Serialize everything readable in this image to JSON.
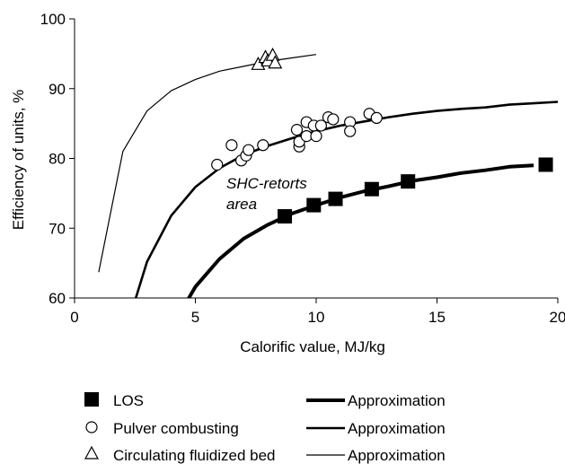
{
  "chart_data": {
    "type": "scatter",
    "xlabel": "Calorific value, MJ/kg",
    "ylabel": "Efficiency of units, %",
    "xlim": [
      0,
      20
    ],
    "ylim": [
      60,
      100
    ],
    "x_ticks": [
      "0",
      "5",
      "10",
      "15",
      "20"
    ],
    "y_ticks": [
      "60",
      "70",
      "80",
      "90",
      "100"
    ],
    "grid": false,
    "legend_position": "bottom",
    "annotation": [
      "SHC-retorts",
      "area"
    ],
    "series": [
      {
        "name": "LOS",
        "marker": "filled-square",
        "points": [
          {
            "x": 8.7,
            "y": 71.7
          },
          {
            "x": 9.9,
            "y": 73.3
          },
          {
            "x": 10.8,
            "y": 74.2
          },
          {
            "x": 12.3,
            "y": 75.6
          },
          {
            "x": 13.8,
            "y": 76.7
          },
          {
            "x": 19.5,
            "y": 79.1
          }
        ]
      },
      {
        "name": "Pulver combusting",
        "marker": "open-circle",
        "points": [
          {
            "x": 5.9,
            "y": 79.1
          },
          {
            "x": 6.5,
            "y": 81.9
          },
          {
            "x": 6.9,
            "y": 79.7
          },
          {
            "x": 7.1,
            "y": 80.4
          },
          {
            "x": 7.2,
            "y": 81.2
          },
          {
            "x": 7.8,
            "y": 81.9
          },
          {
            "x": 9.2,
            "y": 84.1
          },
          {
            "x": 9.3,
            "y": 81.7
          },
          {
            "x": 9.3,
            "y": 82.4
          },
          {
            "x": 9.6,
            "y": 83.2
          },
          {
            "x": 9.6,
            "y": 85.2
          },
          {
            "x": 9.9,
            "y": 84.7
          },
          {
            "x": 10.0,
            "y": 83.2
          },
          {
            "x": 10.2,
            "y": 84.7
          },
          {
            "x": 10.5,
            "y": 85.9
          },
          {
            "x": 10.7,
            "y": 85.6
          },
          {
            "x": 11.4,
            "y": 85.2
          },
          {
            "x": 11.4,
            "y": 83.9
          },
          {
            "x": 12.2,
            "y": 86.4
          },
          {
            "x": 12.5,
            "y": 85.8
          }
        ]
      },
      {
        "name": "Circulating fluidized bed",
        "marker": "open-triangle",
        "points": [
          {
            "x": 7.6,
            "y": 93.4
          },
          {
            "x": 7.9,
            "y": 94.4
          },
          {
            "x": 8.0,
            "y": 93.9
          },
          {
            "x": 8.2,
            "y": 94.7
          },
          {
            "x": 8.3,
            "y": 93.6
          }
        ]
      },
      {
        "name": "Approximation",
        "legend_for": "LOS",
        "line_weight": "thick",
        "points": [
          {
            "x": 4.6,
            "y": 59.2
          },
          {
            "x": 5.0,
            "y": 61.6
          },
          {
            "x": 6.0,
            "y": 65.6
          },
          {
            "x": 7.0,
            "y": 68.5
          },
          {
            "x": 8.0,
            "y": 70.5
          },
          {
            "x": 9.0,
            "y": 72.1
          },
          {
            "x": 10.0,
            "y": 73.3
          },
          {
            "x": 11.0,
            "y": 74.4
          },
          {
            "x": 12.0,
            "y": 75.3
          },
          {
            "x": 13.0,
            "y": 76.0
          },
          {
            "x": 14.0,
            "y": 76.8
          },
          {
            "x": 15.0,
            "y": 77.3
          },
          {
            "x": 16.0,
            "y": 77.9
          },
          {
            "x": 17.0,
            "y": 78.3
          },
          {
            "x": 18.0,
            "y": 78.8
          },
          {
            "x": 19.0,
            "y": 79.0
          }
        ]
      },
      {
        "name": "Approximation",
        "legend_for": "Pulver combusting",
        "line_weight": "medium",
        "points": [
          {
            "x": 2.4,
            "y": 58.5
          },
          {
            "x": 3.0,
            "y": 65.2
          },
          {
            "x": 4.0,
            "y": 71.8
          },
          {
            "x": 5.0,
            "y": 75.9
          },
          {
            "x": 6.0,
            "y": 78.6
          },
          {
            "x": 7.0,
            "y": 80.5
          },
          {
            "x": 8.0,
            "y": 81.8
          },
          {
            "x": 9.0,
            "y": 82.9
          },
          {
            "x": 10.0,
            "y": 83.9
          },
          {
            "x": 11.0,
            "y": 84.7
          },
          {
            "x": 12.0,
            "y": 85.3
          },
          {
            "x": 13.0,
            "y": 85.9
          },
          {
            "x": 14.0,
            "y": 86.4
          },
          {
            "x": 15.0,
            "y": 86.8
          },
          {
            "x": 16.0,
            "y": 87.1
          },
          {
            "x": 17.0,
            "y": 87.3
          },
          {
            "x": 18.0,
            "y": 87.7
          },
          {
            "x": 19.0,
            "y": 87.9
          },
          {
            "x": 20.5,
            "y": 88.2
          }
        ]
      },
      {
        "name": "Approximation",
        "legend_for": "Circulating fluidized bed",
        "line_weight": "thin",
        "points": [
          {
            "x": 1.0,
            "y": 63.7
          },
          {
            "x": 2.0,
            "y": 81.0
          },
          {
            "x": 3.0,
            "y": 86.8
          },
          {
            "x": 4.0,
            "y": 89.7
          },
          {
            "x": 5.0,
            "y": 91.3
          },
          {
            "x": 6.0,
            "y": 92.5
          },
          {
            "x": 7.0,
            "y": 93.2
          },
          {
            "x": 8.0,
            "y": 93.9
          },
          {
            "x": 9.0,
            "y": 94.4
          },
          {
            "x": 10.0,
            "y": 94.9
          }
        ]
      }
    ],
    "legend": [
      {
        "marker": "filled-square",
        "label": "LOS",
        "line_label": "Approximation",
        "line_weight": "thick"
      },
      {
        "marker": "open-circle",
        "label": "Pulver combusting",
        "line_label": "Approximation",
        "line_weight": "medium"
      },
      {
        "marker": "open-triangle",
        "label": "Circulating fluidized bed",
        "line_label": "Approximation",
        "line_weight": "thin"
      }
    ]
  }
}
